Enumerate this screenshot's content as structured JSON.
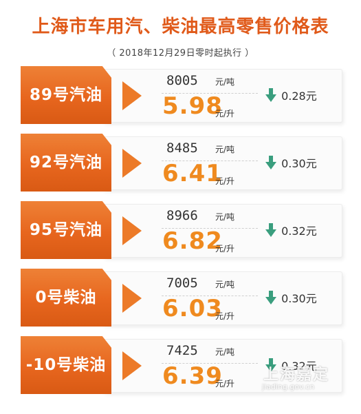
{
  "header": {
    "title": "上海市车用汽、柴油最高零售价格表",
    "subtitle": "（ 2018年12月29日零时起执行 ）"
  },
  "colors": {
    "accent_orange": "#e7661e",
    "price_orange": "#ef8a1f",
    "down_arrow_green": "#3a9e7e"
  },
  "icons": {
    "change_icon": "down-arrow-icon"
  },
  "units": {
    "per_ton": "元/吨",
    "per_liter": "元/升"
  },
  "fuels": [
    {
      "name": "89号汽油",
      "price_per_ton": "8005",
      "price_per_liter": "5.98",
      "change": "0.28元"
    },
    {
      "name": "92号汽油",
      "price_per_ton": "8485",
      "price_per_liter": "6.41",
      "change": "0.30元"
    },
    {
      "name": "95号汽油",
      "price_per_ton": "8966",
      "price_per_liter": "6.82",
      "change": "0.32元"
    },
    {
      "name": "0号柴油",
      "price_per_ton": "7005",
      "price_per_liter": "6.03",
      "change": "0.30元"
    },
    {
      "name": "-10号柴油",
      "price_per_ton": "7425",
      "price_per_liter": "6.39",
      "change": "0.32元"
    }
  ],
  "watermark": {
    "brand": "上海嘉定",
    "url": "jiading.gov.cn"
  }
}
